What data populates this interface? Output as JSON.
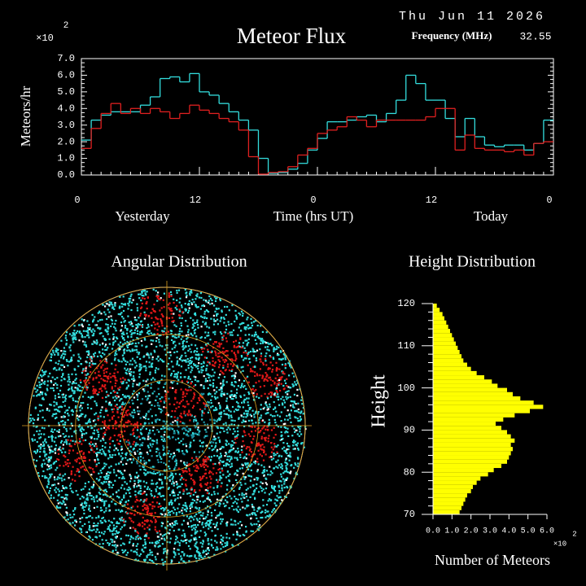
{
  "chart_data": [
    {
      "type": "step",
      "title": "Meteor Flux",
      "date": "Thu Jun 11 2026",
      "frequency_label": "Frequency (MHz)",
      "frequency": "32.55",
      "multiplier": "×10",
      "multiplier_exp": "2",
      "ylabel": "Meteors/hr",
      "xlabel": "Time (hrs UT)",
      "day_labels": [
        "Yesterday",
        "Today"
      ],
      "x": [
        0,
        1,
        2,
        3,
        4,
        5,
        6,
        7,
        8,
        9,
        10,
        11,
        12,
        13,
        14,
        15,
        16,
        17,
        18,
        19,
        20,
        21,
        22,
        23,
        24,
        25,
        26,
        27,
        28,
        29,
        30,
        31,
        32,
        33,
        34,
        35,
        36,
        37,
        38,
        39,
        40,
        41,
        42,
        43,
        44,
        45,
        46,
        47
      ],
      "xlim": [
        0,
        48
      ],
      "xticks": [
        0,
        12,
        {
          "value": 24,
          "label": "0"
        },
        {
          "value": 36,
          "label": "12"
        },
        {
          "value": 48,
          "label": "0"
        }
      ],
      "ylim": [
        0,
        7
      ],
      "yticks": [
        {
          "value": 0,
          "label": "0.0"
        },
        {
          "value": 1,
          "label": "1.0"
        },
        {
          "value": 2,
          "label": "2.0"
        },
        {
          "value": 3,
          "label": "3.0"
        },
        {
          "value": 4,
          "label": "4.0"
        },
        {
          "value": 5,
          "label": "5.0"
        },
        {
          "value": 6,
          "label": "6.0"
        },
        {
          "value": 7,
          "label": "7.0"
        }
      ],
      "series": [
        {
          "color": "#33dddd",
          "values": [
            2.1,
            3.3,
            3.6,
            3.8,
            3.8,
            3.8,
            4.2,
            4.7,
            5.8,
            5.9,
            5.6,
            6.1,
            5.0,
            4.8,
            4.3,
            3.8,
            3.3,
            2.7,
            1.0,
            0.1,
            0.15,
            0.35,
            0.7,
            1.5,
            2.2,
            3.2,
            3.2,
            3.3,
            3.5,
            3.6,
            3.2,
            3.7,
            4.5,
            6.0,
            5.5,
            4.5,
            4.5,
            3.4,
            2.3,
            3.4,
            2.3,
            1.8,
            1.7,
            1.8,
            1.8,
            1.5,
            1.9,
            3.3
          ]
        },
        {
          "color": "#e02020",
          "values": [
            1.6,
            2.8,
            3.7,
            4.3,
            3.7,
            4.0,
            3.7,
            4.0,
            3.8,
            3.4,
            3.7,
            4.2,
            3.9,
            3.7,
            3.4,
            3.2,
            2.7,
            1.1,
            0.05,
            0.15,
            0.2,
            0.5,
            1.2,
            1.6,
            2.5,
            2.7,
            2.9,
            3.5,
            3.3,
            2.9,
            3.3,
            3.3,
            3.3,
            3.3,
            3.3,
            3.5,
            4.0,
            4.0,
            1.5,
            2.4,
            1.6,
            1.5,
            1.5,
            1.4,
            1.5,
            1.2,
            1.9,
            2.0
          ]
        }
      ]
    },
    {
      "type": "histogram",
      "title": "Height Distribution",
      "ylabel": "Height",
      "xlabel": "Number of Meteors",
      "multiplier": "×10",
      "multiplier_exp": "2",
      "color": "#ffff00",
      "bins": [
        70,
        71,
        72,
        73,
        74,
        75,
        76,
        77,
        78,
        79,
        80,
        81,
        82,
        83,
        84,
        85,
        86,
        87,
        88,
        89,
        90,
        91,
        92,
        93,
        94,
        95,
        96,
        97,
        98,
        99,
        100,
        101,
        102,
        103,
        104,
        105,
        106,
        107,
        108,
        109,
        110,
        111,
        112,
        113,
        114,
        115,
        116,
        117,
        118,
        119,
        120
      ],
      "values": [
        1.4,
        1.5,
        1.6,
        1.7,
        1.8,
        2.0,
        2.1,
        2.3,
        2.5,
        2.9,
        3.2,
        3.6,
        3.9,
        4.0,
        4.1,
        4.2,
        4.1,
        4.3,
        4.1,
        3.9,
        3.6,
        3.3,
        3.7,
        4.3,
        5.1,
        5.8,
        5.3,
        4.6,
        4.2,
        3.9,
        3.4,
        3.1,
        2.7,
        2.3,
        2.0,
        1.8,
        1.6,
        1.5,
        1.4,
        1.3,
        1.2,
        1.1,
        1.0,
        0.9,
        0.8,
        0.7,
        0.6,
        0.5,
        0.35,
        0.2
      ],
      "xlim": [
        0,
        6
      ],
      "ylim": [
        70,
        120
      ],
      "xticks": [
        {
          "value": 0,
          "label": "0.0"
        },
        {
          "value": 1,
          "label": "1.0"
        },
        {
          "value": 2,
          "label": "2.0"
        },
        {
          "value": 3,
          "label": "3.0"
        },
        {
          "value": 4,
          "label": "4.0"
        },
        {
          "value": 5,
          "label": "5.0"
        },
        {
          "value": 6,
          "label": "6.0"
        }
      ],
      "yticks": [
        70,
        80,
        90,
        100,
        110,
        120
      ]
    }
  ],
  "angular": {
    "title": "Angular Distribution"
  }
}
